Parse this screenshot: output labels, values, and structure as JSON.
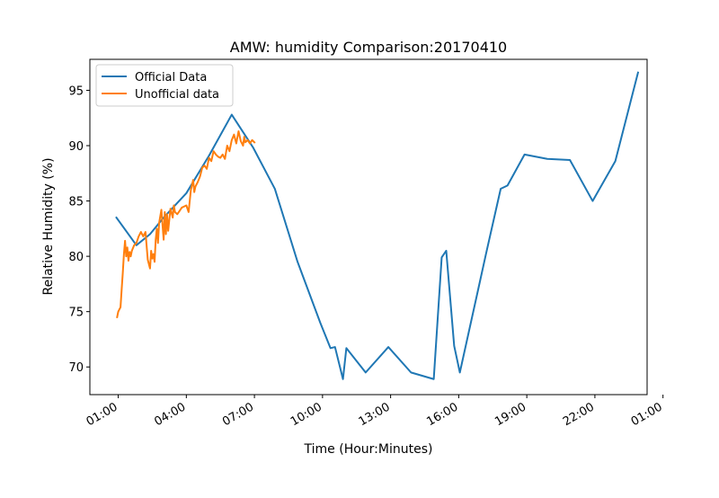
{
  "chart_data": {
    "type": "line",
    "title": "AMW: humidity Comparison:20170410",
    "xlabel": "Time (Hour:Minutes)",
    "ylabel": "Relative Humidity (%)",
    "x_unit": "hours since 00:00 on 2017-04-10",
    "xlim": [
      -0.25,
      24.3
    ],
    "ylim": [
      67.5,
      97.8
    ],
    "x_ticks": [
      1,
      4,
      7,
      10,
      13,
      16,
      19,
      22,
      25
    ],
    "x_tick_labels": [
      "01:00",
      "04:00",
      "07:00",
      "10:00",
      "13:00",
      "16:00",
      "19:00",
      "22:00",
      "01:00"
    ],
    "y_ticks": [
      70,
      75,
      80,
      85,
      90,
      95
    ],
    "y_tick_labels": [
      "70",
      "75",
      "80",
      "85",
      "90",
      "95"
    ],
    "grid": false,
    "legend_position": "upper-left",
    "series": [
      {
        "name": "Official Data",
        "color": "#1f77b4",
        "x": [
          0.92,
          1.8,
          2.4,
          3.0,
          4.0,
          5.0,
          6.0,
          6.95,
          7.9,
          8.9,
          9.9,
          10.35,
          10.55,
          10.9,
          11.05,
          11.9,
          12.9,
          13.9,
          14.9,
          15.25,
          15.45,
          15.8,
          16.05,
          16.9,
          17.2,
          17.85,
          18.15,
          18.9,
          19.9,
          20.9,
          21.9,
          22.9,
          23.9
        ],
        "y": [
          83.5,
          81.0,
          82.0,
          83.5,
          85.7,
          89.1,
          92.8,
          89.8,
          86.1,
          79.5,
          74.0,
          71.7,
          71.8,
          68.9,
          71.7,
          69.5,
          71.8,
          69.5,
          68.9,
          79.9,
          80.5,
          71.9,
          69.5,
          77.4,
          80.2,
          86.1,
          86.4,
          89.2,
          88.8,
          88.7,
          85.0,
          88.6,
          96.6
        ]
      },
      {
        "name": "Unofficial data",
        "color": "#ff7f0e",
        "x": [
          0.95,
          1.0,
          1.05,
          1.1,
          1.15,
          1.2,
          1.25,
          1.3,
          1.35,
          1.4,
          1.45,
          1.5,
          1.55,
          1.6,
          1.7,
          1.8,
          1.9,
          2.0,
          2.1,
          2.2,
          2.3,
          2.4,
          2.45,
          2.5,
          2.55,
          2.6,
          2.65,
          2.7,
          2.75,
          2.8,
          2.9,
          3.0,
          3.05,
          3.1,
          3.15,
          3.2,
          3.3,
          3.4,
          3.45,
          3.5,
          3.6,
          3.7,
          3.8,
          3.9,
          4.0,
          4.1,
          4.2,
          4.3,
          4.35,
          4.4,
          4.5,
          4.6,
          4.7,
          4.8,
          4.9,
          5.0,
          5.1,
          5.2,
          5.3,
          5.4,
          5.5,
          5.6,
          5.7,
          5.8,
          5.9,
          6.0,
          6.1,
          6.2,
          6.3,
          6.4,
          6.5,
          6.55,
          6.6,
          6.7,
          6.8,
          6.9,
          7.0
        ],
        "y": [
          74.5,
          75.0,
          75.2,
          75.4,
          77.0,
          78.5,
          80.2,
          81.4,
          80.0,
          80.8,
          79.6,
          80.4,
          80.0,
          80.5,
          81.0,
          81.2,
          81.8,
          82.2,
          81.8,
          82.2,
          79.7,
          78.9,
          80.5,
          79.8,
          80.2,
          79.5,
          81.5,
          82.5,
          81.2,
          83.0,
          84.2,
          81.5,
          84.0,
          82.0,
          83.8,
          82.3,
          84.3,
          83.5,
          84.6,
          84.0,
          83.8,
          84.1,
          84.4,
          84.5,
          84.6,
          84.0,
          86.0,
          86.9,
          85.8,
          86.3,
          86.7,
          87.2,
          88.0,
          88.2,
          87.9,
          88.9,
          88.6,
          89.5,
          89.2,
          89.0,
          88.9,
          89.2,
          88.8,
          90.0,
          89.5,
          90.5,
          91.0,
          90.2,
          91.3,
          90.4,
          90.0,
          90.8,
          90.3,
          90.5,
          90.2,
          90.5,
          90.3
        ]
      }
    ]
  }
}
